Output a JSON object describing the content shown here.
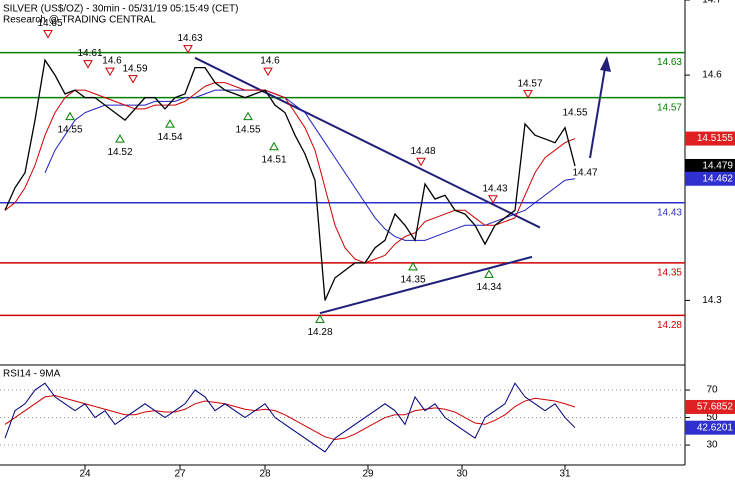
{
  "chart_data": [
    {
      "type": "line",
      "title": "SILVER (US$/OZ) - 30min - 05/31/19 05:15:49 (CET)",
      "subtitle": "Research @ TRADING CENTRAL",
      "xlim": [
        -0.5,
        68
      ],
      "ylim": [
        14.214,
        14.7
      ],
      "yticks": [
        14.7,
        14.6,
        14.3
      ],
      "series": [
        {
          "color": "#000000",
          "values": [
            14.42,
            14.45,
            14.47,
            14.54,
            14.62,
            14.6,
            14.575,
            14.58,
            14.57,
            14.57,
            14.56,
            14.55,
            14.54,
            14.555,
            14.57,
            14.57,
            14.555,
            14.57,
            14.575,
            14.61,
            14.61,
            14.59,
            14.58,
            14.575,
            14.57,
            14.575,
            14.58,
            14.56,
            14.55,
            14.52,
            14.495,
            14.46,
            14.3,
            14.33,
            14.34,
            14.35,
            14.35,
            14.37,
            14.38,
            14.415,
            14.4,
            14.38,
            14.455,
            14.435,
            14.44,
            14.42,
            14.415,
            14.4,
            14.375,
            14.4,
            14.41,
            14.42,
            14.535,
            14.52,
            14.515,
            14.51,
            14.53,
            14.479
          ],
          "box": "#000000"
        },
        {
          "color": "#d00000",
          "values": [
            14.42,
            14.43,
            14.45,
            14.48,
            14.52,
            14.55,
            14.57,
            14.58,
            14.58,
            14.575,
            14.57,
            14.565,
            14.56,
            14.555,
            14.555,
            14.56,
            14.56,
            14.56,
            14.565,
            14.575,
            14.585,
            14.59,
            14.59,
            14.585,
            14.58,
            14.58,
            14.58,
            14.575,
            14.57,
            14.55,
            14.53,
            14.5,
            14.45,
            14.4,
            14.37,
            14.355,
            14.35,
            14.355,
            14.36,
            14.375,
            14.385,
            14.39,
            14.405,
            14.41,
            14.415,
            14.42,
            14.42,
            14.41,
            14.4,
            14.4,
            14.405,
            14.41,
            14.44,
            14.47,
            14.49,
            14.5,
            14.51,
            14.5155
          ],
          "box": "#e02020"
        },
        {
          "color": "#2020c0",
          "values": [
            null,
            null,
            null,
            null,
            14.47,
            14.5,
            14.52,
            14.54,
            14.55,
            14.555,
            14.56,
            14.56,
            14.56,
            14.56,
            14.56,
            14.565,
            14.565,
            14.565,
            14.57,
            14.57,
            14.575,
            14.58,
            14.58,
            14.58,
            14.58,
            14.58,
            14.58,
            14.575,
            14.57,
            14.56,
            14.55,
            14.53,
            14.51,
            14.49,
            14.47,
            14.45,
            14.43,
            14.41,
            14.395,
            14.385,
            14.38,
            14.38,
            14.38,
            14.385,
            14.39,
            14.395,
            14.4,
            14.4,
            14.4,
            14.405,
            14.41,
            14.415,
            14.42,
            14.43,
            14.44,
            14.45,
            14.46,
            14.462
          ],
          "box": "#3030d0"
        }
      ],
      "levels": [
        {
          "value": 14.63,
          "color": "#008000"
        },
        {
          "value": 14.57,
          "color": "#008000"
        },
        {
          "value": 14.43,
          "color": "#3030d0"
        },
        {
          "value": 14.35,
          "color": "#d00000"
        },
        {
          "value": 14.28,
          "color": "#d00000"
        }
      ],
      "trendlines": [
        {
          "x": [
            19,
            53.5
          ],
          "values": [
            14.623,
            14.397
          ],
          "color": "#20207a"
        },
        {
          "x": [
            31.5,
            52.7
          ],
          "values": [
            14.283,
            14.358
          ],
          "color": "#20207a"
        }
      ],
      "annotations": [
        {
          "kind": "high",
          "x": 4.3,
          "value": 14.65
        },
        {
          "kind": "high",
          "x": 8.3,
          "value": 14.61
        },
        {
          "kind": "high",
          "x": 10.5,
          "value": 14.6
        },
        {
          "kind": "high",
          "x": 12.8,
          "value": 14.59
        },
        {
          "kind": "high",
          "x": 18.3,
          "value": 14.63
        },
        {
          "kind": "high",
          "x": 26.3,
          "value": 14.6
        },
        {
          "kind": "high",
          "x": 41.6,
          "value": 14.48
        },
        {
          "kind": "high",
          "x": 48.8,
          "value": 14.43
        },
        {
          "kind": "high",
          "x": 52.3,
          "value": 14.57
        },
        {
          "kind": "low",
          "x": 6.5,
          "value": 14.55
        },
        {
          "kind": "low",
          "x": 11.5,
          "value": 14.52
        },
        {
          "kind": "low",
          "x": 16.5,
          "value": 14.54
        },
        {
          "kind": "low",
          "x": 24.3,
          "value": 14.55
        },
        {
          "kind": "low",
          "x": 26.9,
          "value": 14.51
        },
        {
          "kind": "low",
          "x": 31.5,
          "value": 14.28
        },
        {
          "kind": "low",
          "x": 40.8,
          "value": 14.35
        },
        {
          "kind": "low",
          "x": 48.4,
          "value": 14.34
        },
        {
          "kind": "note",
          "x": 57,
          "value": 14.55
        },
        {
          "kind": "note",
          "x": 58,
          "value": 14.47
        }
      ]
    },
    {
      "type": "line",
      "title": "RSI14 - 9MA",
      "xlim": [
        -0.5,
        68
      ],
      "ylim": [
        15.5,
        88.2
      ],
      "yticks": [
        70,
        50,
        30
      ],
      "xticks": [
        {
          "value": 8,
          "label": "24"
        },
        {
          "value": 17.5,
          "label": "27"
        },
        {
          "value": 26,
          "label": "28"
        },
        {
          "value": 36.3,
          "label": "29"
        },
        {
          "value": 45.7,
          "label": "30"
        },
        {
          "value": 56,
          "label": "31"
        }
      ],
      "series": [
        {
          "color": "#000080",
          "values": [
            35,
            55,
            60,
            70,
            75,
            65,
            60,
            55,
            60,
            50,
            55,
            45,
            50,
            55,
            60,
            55,
            50,
            55,
            60,
            70,
            65,
            55,
            60,
            55,
            50,
            55,
            60,
            50,
            45,
            40,
            35,
            30,
            25,
            35,
            40,
            45,
            50,
            55,
            60,
            55,
            45,
            65,
            55,
            60,
            50,
            45,
            40,
            35,
            50,
            55,
            60,
            75,
            65,
            60,
            55,
            60,
            50,
            42.6201
          ],
          "box": "#3030d0"
        },
        {
          "color": "#d00000",
          "values": [
            45,
            50,
            55,
            60,
            65,
            66,
            64,
            62,
            60,
            58,
            56,
            54,
            52,
            52,
            54,
            55,
            54,
            54,
            56,
            60,
            62,
            61,
            60,
            58,
            56,
            55,
            56,
            55,
            52,
            48,
            44,
            40,
            36,
            34,
            35,
            38,
            42,
            46,
            50,
            52,
            52,
            55,
            56,
            57,
            56,
            54,
            50,
            46,
            45,
            48,
            52,
            58,
            62,
            64,
            63,
            62,
            60,
            57.6852
          ],
          "box": "#e02020"
        }
      ]
    }
  ]
}
